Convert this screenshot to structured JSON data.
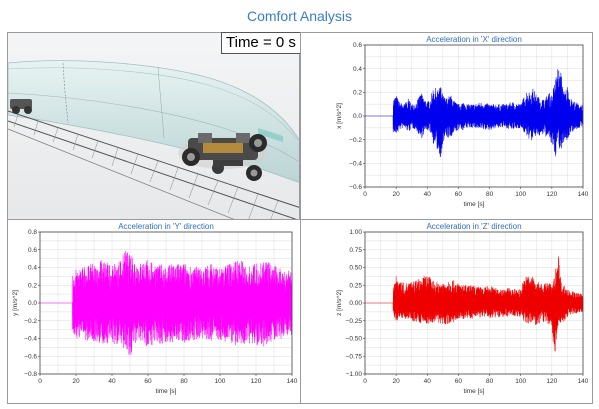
{
  "main_title": "Comfort Analysis",
  "simulation": {
    "time_label": "Time = 0 s"
  },
  "colors": {
    "title": "#3a7cc7",
    "x_series": "#0000ee",
    "y_series": "#ff00ff",
    "z_series": "#ee0000",
    "grid": "#dcdcdc"
  },
  "chart_data": [
    {
      "id": "accel-x",
      "type": "line",
      "title": "Acceleration in 'X' direction",
      "xlabel": "time [s]",
      "ylabel": "x [m/s^2]",
      "xlim": [
        0,
        140
      ],
      "ylim": [
        -0.6,
        0.6
      ],
      "xticks": [
        0,
        20,
        40,
        60,
        80,
        100,
        120,
        140
      ],
      "yticks": [
        -0.6,
        -0.4,
        -0.2,
        0.0,
        0.2,
        0.4,
        0.6
      ],
      "ytick_labels": [
        "−0.6",
        "−0.4",
        "−0.2",
        "0.0",
        "0.2",
        "0.4",
        "0.6"
      ],
      "grid": true,
      "series": [
        {
          "x": [
            0,
            18,
            18,
            20,
            22,
            25,
            28,
            30,
            33,
            36,
            38,
            40,
            42,
            44,
            47,
            48,
            50,
            52,
            55,
            58,
            60,
            63,
            66,
            70,
            75,
            80,
            85,
            90,
            95,
            100,
            102,
            104,
            106,
            108,
            110,
            112,
            115,
            118,
            120,
            122,
            124,
            125,
            126,
            128,
            130,
            132,
            135,
            138,
            140
          ],
          "y_upper": [
            0,
            0,
            0.14,
            0.18,
            0.12,
            0.1,
            0.15,
            0.1,
            0.12,
            0.2,
            0.15,
            0.12,
            0.15,
            0.25,
            0.22,
            0.28,
            0.18,
            0.15,
            0.18,
            0.12,
            0.1,
            0.12,
            0.1,
            0.1,
            0.12,
            0.1,
            0.1,
            0.1,
            0.12,
            0.1,
            0.16,
            0.22,
            0.2,
            0.24,
            0.18,
            0.16,
            0.14,
            0.2,
            0.18,
            0.3,
            0.44,
            0.35,
            0.38,
            0.2,
            0.26,
            0.15,
            0.12,
            0.1,
            0.1
          ],
          "y_lower": [
            0,
            0,
            -0.14,
            -0.16,
            -0.12,
            -0.1,
            -0.14,
            -0.1,
            -0.12,
            -0.2,
            -0.15,
            -0.12,
            -0.14,
            -0.24,
            -0.3,
            -0.38,
            -0.25,
            -0.18,
            -0.2,
            -0.14,
            -0.12,
            -0.12,
            -0.1,
            -0.1,
            -0.12,
            -0.12,
            -0.1,
            -0.1,
            -0.12,
            -0.1,
            -0.14,
            -0.18,
            -0.2,
            -0.22,
            -0.16,
            -0.18,
            -0.16,
            -0.2,
            -0.25,
            -0.38,
            -0.2,
            -0.32,
            -0.3,
            -0.2,
            -0.22,
            -0.14,
            -0.12,
            -0.1,
            -0.1
          ]
        }
      ]
    },
    {
      "id": "accel-y",
      "type": "line",
      "title": "Acceleration in 'Y' direction",
      "xlabel": "time [s]",
      "ylabel": "y [m/s^2]",
      "xlim": [
        0,
        140
      ],
      "ylim": [
        -0.8,
        0.8
      ],
      "xticks": [
        0,
        20,
        40,
        60,
        80,
        100,
        120,
        140
      ],
      "yticks": [
        -0.8,
        -0.6,
        -0.4,
        -0.2,
        0.0,
        0.2,
        0.4,
        0.6,
        0.8
      ],
      "ytick_labels": [
        "−0.8",
        "−0.6",
        "−0.4",
        "−0.2",
        "0.0",
        "0.2",
        "0.4",
        "0.6",
        "0.8"
      ],
      "grid": true,
      "series": [
        {
          "x": [
            0,
            18,
            18,
            20,
            25,
            30,
            35,
            40,
            45,
            48,
            50,
            52,
            55,
            60,
            65,
            70,
            75,
            80,
            85,
            90,
            95,
            100,
            105,
            110,
            115,
            120,
            125,
            130,
            135,
            140
          ],
          "y_upper": [
            0,
            0,
            0.3,
            0.4,
            0.42,
            0.45,
            0.5,
            0.42,
            0.5,
            0.62,
            0.55,
            0.5,
            0.45,
            0.5,
            0.45,
            0.42,
            0.45,
            0.45,
            0.42,
            0.4,
            0.45,
            0.4,
            0.45,
            0.5,
            0.45,
            0.45,
            0.5,
            0.42,
            0.4,
            0.38
          ],
          "y_lower": [
            0,
            0,
            -0.3,
            -0.4,
            -0.42,
            -0.45,
            -0.48,
            -0.45,
            -0.5,
            -0.52,
            -0.62,
            -0.5,
            -0.48,
            -0.5,
            -0.45,
            -0.48,
            -0.45,
            -0.45,
            -0.42,
            -0.4,
            -0.45,
            -0.42,
            -0.45,
            -0.5,
            -0.45,
            -0.48,
            -0.5,
            -0.42,
            -0.4,
            -0.36
          ]
        }
      ]
    },
    {
      "id": "accel-z",
      "type": "line",
      "title": "Acceleration in 'Z' direction",
      "xlabel": "time [s]",
      "ylabel": "z [m/s^2]",
      "xlim": [
        0,
        140
      ],
      "ylim": [
        -1.0,
        1.0
      ],
      "xticks": [
        0,
        20,
        40,
        60,
        80,
        100,
        120,
        140
      ],
      "yticks": [
        -1.0,
        -0.75,
        -0.5,
        -0.25,
        0.0,
        0.25,
        0.5,
        0.75,
        1.0
      ],
      "ytick_labels": [
        "−1.00",
        "−0.75",
        "−0.50",
        "−0.25",
        "0.00",
        "0.25",
        "0.50",
        "0.75",
        "1.00"
      ],
      "grid": true,
      "series": [
        {
          "x": [
            0,
            18,
            18,
            20,
            25,
            30,
            35,
            40,
            45,
            50,
            55,
            60,
            65,
            70,
            75,
            80,
            85,
            90,
            95,
            100,
            102,
            105,
            108,
            110,
            115,
            118,
            120,
            122,
            124,
            126,
            130,
            135,
            140
          ],
          "y_upper": [
            0,
            0,
            0.3,
            0.38,
            0.28,
            0.3,
            0.35,
            0.4,
            0.3,
            0.3,
            0.35,
            0.28,
            0.25,
            0.25,
            0.22,
            0.25,
            0.2,
            0.22,
            0.2,
            0.2,
            0.35,
            0.4,
            0.38,
            0.3,
            0.28,
            0.3,
            0.25,
            0.4,
            0.78,
            0.3,
            0.2,
            0.15,
            0.12
          ],
          "y_lower": [
            0,
            0,
            -0.2,
            -0.25,
            -0.22,
            -0.25,
            -0.28,
            -0.3,
            -0.28,
            -0.3,
            -0.3,
            -0.25,
            -0.22,
            -0.22,
            -0.2,
            -0.22,
            -0.2,
            -0.2,
            -0.18,
            -0.2,
            -0.28,
            -0.3,
            -0.28,
            -0.32,
            -0.28,
            -0.3,
            -0.35,
            -0.9,
            -0.3,
            -0.32,
            -0.2,
            -0.15,
            -0.12
          ]
        }
      ]
    }
  ]
}
